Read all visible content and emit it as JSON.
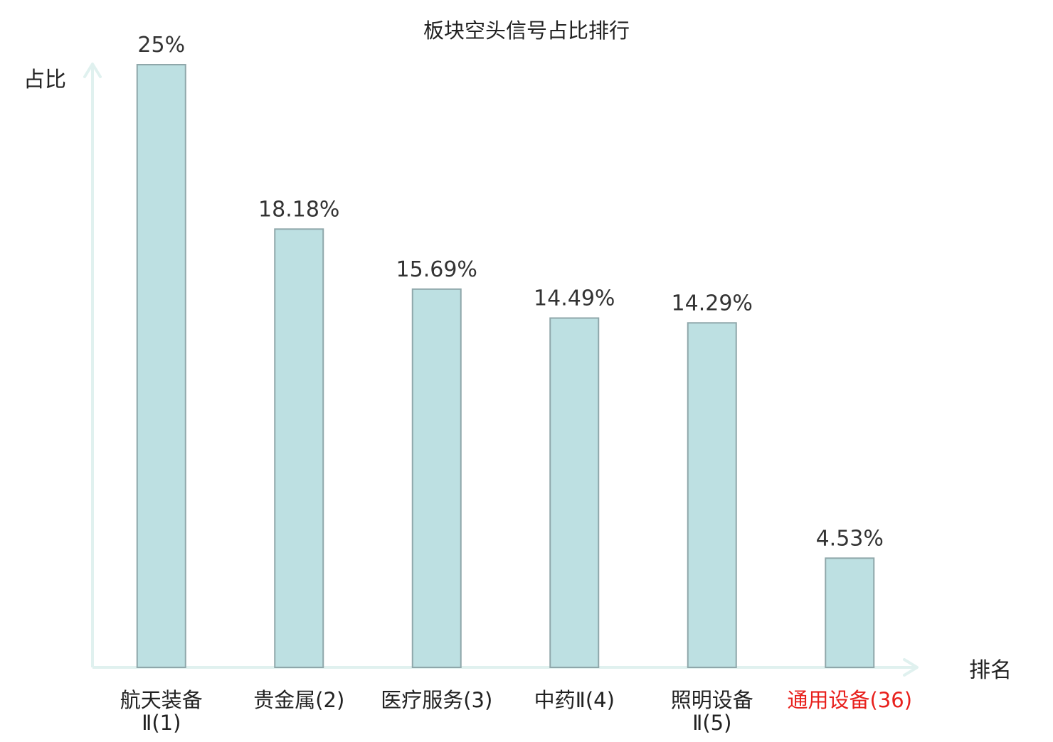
{
  "chart_data": {
    "type": "bar",
    "title": "板块空头信号占比排行",
    "ylabel": "占比",
    "xlabel": "排名",
    "ylim": [
      0,
      25
    ],
    "grid": false,
    "legend": "none",
    "categories": [
      [
        "航天装备",
        "Ⅱ(1)"
      ],
      [
        "贵金属(2)"
      ],
      [
        "医疗服务(3)"
      ],
      [
        "中药Ⅱ(4)"
      ],
      [
        "照明设备",
        "Ⅱ(5)"
      ],
      [
        "通用设备(36)"
      ]
    ],
    "values": [
      25,
      18.18,
      15.69,
      14.49,
      14.29,
      4.53
    ],
    "value_labels": [
      "25%",
      "18.18%",
      "15.69%",
      "14.49%",
      "14.29%",
      "4.53%"
    ],
    "highlight_index": 5
  },
  "colors": {
    "bar_fill": "#bde0e2",
    "bar_stroke": "#8fa7aa",
    "axis": "#e0f1ef",
    "text": "#222222",
    "value_text": "#333333",
    "highlight_text": "#e8201c"
  }
}
